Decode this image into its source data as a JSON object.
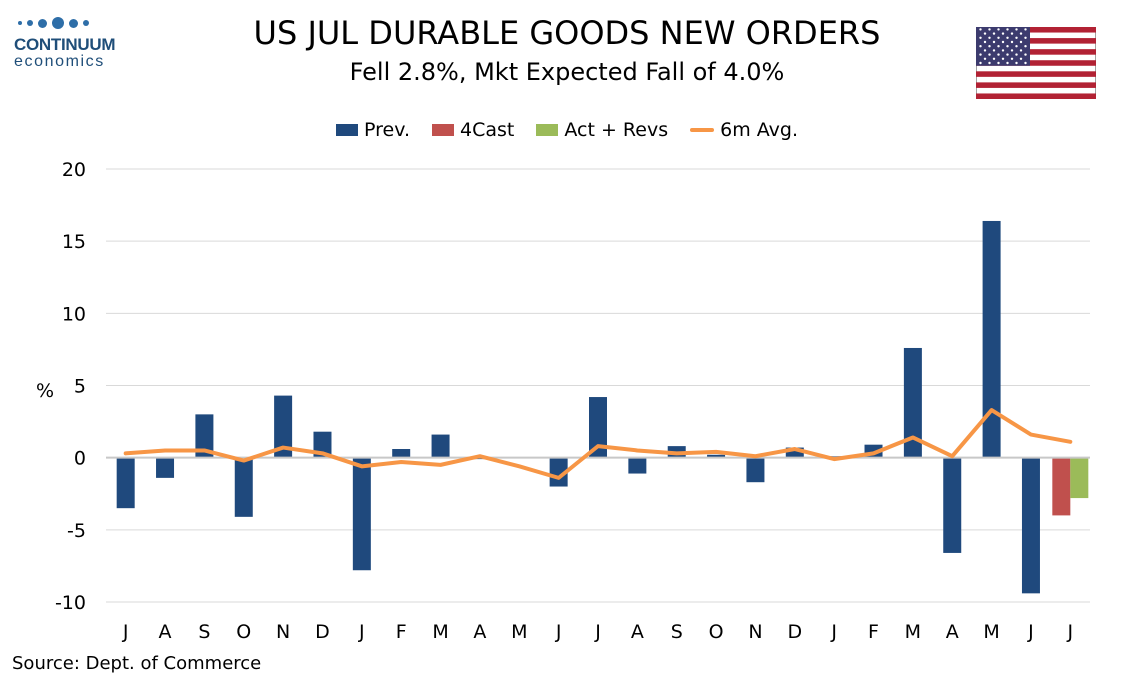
{
  "logo": {
    "name": "CONTINUUM",
    "sub": "economics"
  },
  "title": "US JUL DURABLE GOODS NEW ORDERS",
  "subtitle": "Fell 2.8%, Mkt Expected Fall of 4.0%",
  "source": "Source: Dept. of Commerce",
  "colors": {
    "prev": "#1f497d",
    "forecast": "#c0504d",
    "actual": "#9bbb59",
    "avg": "#f79646"
  },
  "chart_data": {
    "type": "bar",
    "ylabel": "%",
    "ylim": [
      -10,
      20
    ],
    "yticks": [
      -10,
      -5,
      0,
      5,
      10,
      15,
      20
    ],
    "grid": true,
    "legend_position": "top",
    "categories": [
      "J",
      "A",
      "S",
      "O",
      "N",
      "D",
      "J",
      "F",
      "M",
      "A",
      "M",
      "J",
      "J",
      "A",
      "S",
      "O",
      "N",
      "D",
      "J",
      "F",
      "M",
      "A",
      "M",
      "J",
      "J"
    ],
    "series": [
      {
        "name": "Prev.",
        "kind": "bar",
        "values": [
          -3.5,
          -1.4,
          3.0,
          -4.1,
          4.3,
          1.8,
          -7.8,
          0.6,
          1.6,
          -0.1,
          0.0,
          -2.0,
          4.2,
          -1.1,
          0.8,
          0.2,
          -1.7,
          0.7,
          0.1,
          0.9,
          7.6,
          -6.6,
          16.4,
          -9.4,
          null
        ]
      },
      {
        "name": "4Cast",
        "kind": "bar",
        "values": [
          null,
          null,
          null,
          null,
          null,
          null,
          null,
          null,
          null,
          null,
          null,
          null,
          null,
          null,
          null,
          null,
          null,
          null,
          null,
          null,
          null,
          null,
          null,
          null,
          -4.0
        ]
      },
      {
        "name": "Act + Revs",
        "kind": "bar",
        "values": [
          null,
          null,
          null,
          null,
          null,
          null,
          null,
          null,
          null,
          null,
          null,
          null,
          null,
          null,
          null,
          null,
          null,
          null,
          null,
          null,
          null,
          null,
          null,
          null,
          -2.8
        ]
      },
      {
        "name": "6m Avg.",
        "kind": "line",
        "values": [
          0.3,
          0.5,
          0.5,
          -0.2,
          0.7,
          0.3,
          -0.6,
          -0.3,
          -0.5,
          0.1,
          -0.6,
          -1.4,
          0.8,
          0.5,
          0.3,
          0.4,
          0.1,
          0.6,
          -0.1,
          0.3,
          1.4,
          0.1,
          3.3,
          1.6,
          1.1
        ]
      }
    ]
  }
}
